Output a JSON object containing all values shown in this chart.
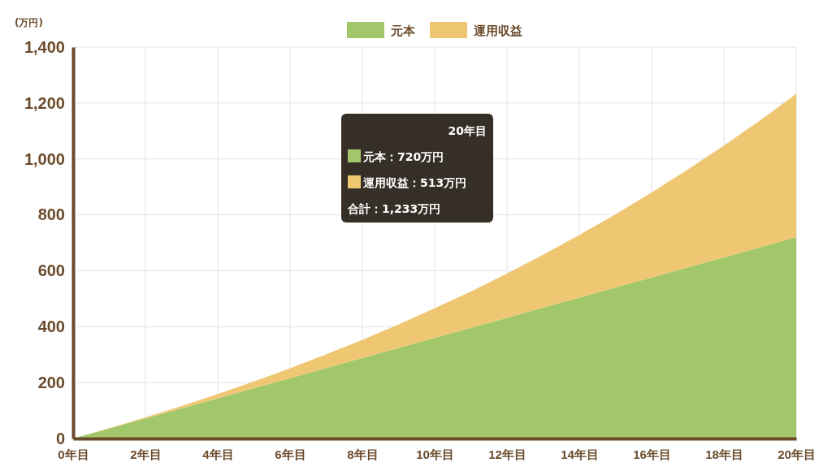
{
  "chart_data": {
    "type": "area",
    "stacked": true,
    "ylabel": "(万円)",
    "categories": [
      "0年目",
      null,
      "2年目",
      null,
      "4年目",
      null,
      "6年目",
      null,
      "8年目",
      null,
      "10年目",
      null,
      "12年目",
      null,
      "14年目",
      null,
      "16年目",
      null,
      "18年目",
      null,
      "20年目"
    ],
    "series": [
      {
        "name": "元本",
        "color": "#a2c76a",
        "values": [
          0,
          36,
          72,
          108,
          144,
          180,
          216,
          252,
          288,
          324,
          360,
          396,
          432,
          468,
          504,
          540,
          576,
          612,
          648,
          684,
          720
        ]
      },
      {
        "name": "運用収益",
        "color": "#efc773",
        "values": [
          0,
          1,
          4,
          8,
          15,
          24,
          35,
          49,
          65,
          84,
          106,
          130,
          158,
          189,
          224,
          262,
          304,
          350,
          400,
          454,
          513
        ]
      }
    ],
    "ylim": [
      0,
      1400
    ],
    "yticks": [
      0,
      {
        "value": 200,
        "label": "200"
      },
      {
        "value": 400,
        "label": "400"
      },
      {
        "value": 600,
        "label": "600"
      },
      {
        "value": 800,
        "label": "800"
      },
      {
        "value": 1000,
        "label": "1,000"
      },
      {
        "value": 1200,
        "label": "1,200"
      },
      {
        "value": 1400,
        "label": "1,400"
      }
    ],
    "grid": true,
    "legend": "top",
    "annotations": [
      "20年目",
      "元本：720万円",
      "運用収益：513万円",
      "合計：1,233万円"
    ]
  }
}
